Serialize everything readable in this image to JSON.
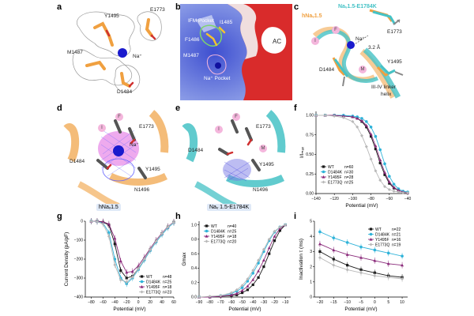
{
  "panels": {
    "a": {
      "letter": "a",
      "labels": [
        "Y1495",
        "E1773",
        "M1487",
        "D1484",
        "Na⁺"
      ]
    },
    "b": {
      "letter": "b",
      "labels": [
        "IFM Pocket",
        "F1486",
        "I1485",
        "M1487",
        "Na⁺ Pocket",
        "AC"
      ]
    },
    "c": {
      "letter": "c",
      "title1": "Naᵥ1.5-E1784K",
      "title2": "hNaᵥ1.5",
      "labels": [
        "I",
        "F",
        "Na⁺",
        "E1773",
        "3.2 Å",
        "D1484",
        "M",
        "Y1495",
        "III-IV linker",
        "helix"
      ]
    },
    "d": {
      "letter": "d",
      "labels": [
        "F",
        "I",
        "E1773",
        "Na⁺",
        "D1484",
        "Y1495",
        "N1496"
      ],
      "caption": "hNaᵥ1.5"
    },
    "e": {
      "letter": "e",
      "labels": [
        "F",
        "I",
        "E1773",
        "M",
        "D1484",
        "Y1495",
        "N1496"
      ],
      "caption": "Naᵥ 1.5-E1784K"
    },
    "f": {
      "letter": "f"
    },
    "g": {
      "letter": "g"
    },
    "h": {
      "letter": "h"
    },
    "i": {
      "letter": "i"
    }
  },
  "colors": {
    "WT": "#1a1a1a",
    "D1484K": "#2fb3d9",
    "Y1495F": "#8a2a7a",
    "E1773Q": "#b8b8b8",
    "orange": "#f0a040",
    "teal": "#45c2c6"
  },
  "chart_data": [
    {
      "panel": "f",
      "type": "line",
      "ylabel": "I/Iₘₐₓ",
      "xlabel": "Potential (mV)",
      "xlim": [
        -140,
        -40
      ],
      "ylim": [
        0,
        1.05
      ],
      "xticks": [
        -140,
        -120,
        -100,
        -80,
        -60,
        -40
      ],
      "yticks": [
        0.0,
        0.25,
        0.5,
        0.75,
        1.0
      ],
      "xtick_labels": [
        "−140",
        "−120",
        "−100",
        "−80",
        "−60",
        "−40"
      ],
      "ytick_labels": [
        "0.00",
        "0.25",
        "0.50",
        "0.75",
        "1.00"
      ],
      "legend": "lower-left",
      "x": [
        -140,
        -130,
        -120,
        -110,
        -100,
        -95,
        -90,
        -85,
        -80,
        -75,
        -70,
        -65,
        -60,
        -55,
        -50,
        -45,
        -40
      ],
      "series": [
        {
          "name": "WT",
          "n": "n=60",
          "values": [
            1.0,
            1.0,
            1.0,
            0.99,
            0.98,
            0.96,
            0.92,
            0.85,
            0.73,
            0.57,
            0.39,
            0.24,
            0.13,
            0.07,
            0.04,
            0.02,
            0.01
          ]
        },
        {
          "name": "D1484K",
          "n": "n=30",
          "values": [
            1.0,
            1.0,
            1.0,
            1.0,
            0.99,
            0.98,
            0.96,
            0.92,
            0.85,
            0.73,
            0.56,
            0.38,
            0.22,
            0.12,
            0.06,
            0.03,
            0.02
          ]
        },
        {
          "name": "Y1495F",
          "n": "n=28",
          "values": [
            1.0,
            1.0,
            1.0,
            0.99,
            0.98,
            0.96,
            0.93,
            0.87,
            0.76,
            0.61,
            0.43,
            0.27,
            0.15,
            0.08,
            0.04,
            0.02,
            0.01
          ]
        },
        {
          "name": "E1773Q",
          "n": "n=25",
          "values": [
            1.0,
            1.0,
            0.99,
            0.97,
            0.92,
            0.85,
            0.74,
            0.6,
            0.44,
            0.29,
            0.17,
            0.09,
            0.05,
            0.03,
            0.02,
            0.01,
            0.01
          ]
        }
      ]
    },
    {
      "panel": "g",
      "type": "line",
      "ylabel": "Current Density (pA/pF)",
      "xlabel": "Potential (mV)",
      "xlim": [
        -90,
        60
      ],
      "ylim": [
        -400,
        0
      ],
      "xticks": [
        -80,
        -60,
        -40,
        -20,
        0,
        20,
        40,
        60
      ],
      "yticks": [
        0,
        -100,
        -200,
        -300,
        -400
      ],
      "xtick_labels": [
        "−80",
        "−60",
        "−40",
        "−20",
        "0",
        "20",
        "40",
        "60"
      ],
      "ytick_labels": [
        "0",
        "−100",
        "−200",
        "−300",
        "−400"
      ],
      "legend": "lower-right",
      "x": [
        -80,
        -70,
        -60,
        -50,
        -40,
        -30,
        -20,
        -10,
        0,
        10,
        20,
        30,
        40,
        50,
        60
      ],
      "series": [
        {
          "name": "WT",
          "n": "n=48",
          "values": [
            0,
            0,
            -5,
            -20,
            -120,
            -260,
            -300,
            -290,
            -250,
            -200,
            -150,
            -105,
            -65,
            -30,
            -5
          ]
        },
        {
          "name": "D1484K",
          "n": "n=25",
          "values": [
            0,
            -2,
            -10,
            -60,
            -200,
            -300,
            -330,
            -300,
            -255,
            -205,
            -155,
            -110,
            -70,
            -35,
            -8
          ]
        },
        {
          "name": "Y1495F",
          "n": "n=18",
          "values": [
            0,
            0,
            -3,
            -15,
            -90,
            -210,
            -270,
            -265,
            -235,
            -190,
            -145,
            -100,
            -62,
            -28,
            -4
          ]
        },
        {
          "name": "E1773Q",
          "n": "n=23",
          "values": [
            0,
            -2,
            -15,
            -80,
            -230,
            -310,
            -320,
            -295,
            -250,
            -200,
            -150,
            -105,
            -65,
            -30,
            -6
          ]
        }
      ]
    },
    {
      "panel": "h",
      "type": "line",
      "ylabel": "Gmax",
      "xlabel": "Potential (mV)",
      "xlim": [
        -90,
        -5
      ],
      "ylim": [
        0,
        1.05
      ],
      "xticks": [
        -90,
        -80,
        -70,
        -60,
        -50,
        -40,
        -30,
        -20,
        -10
      ],
      "yticks": [
        0.0,
        0.2,
        0.4,
        0.6,
        0.8,
        1.0
      ],
      "xtick_labels": [
        "−90",
        "−80",
        "−70",
        "−60",
        "−50",
        "−40",
        "−30",
        "−20",
        "−10"
      ],
      "ytick_labels": [
        "0.0",
        "0.2",
        "0.4",
        "0.6",
        "0.8",
        "1.0"
      ],
      "legend": "top-left",
      "x": [
        -90,
        -80,
        -70,
        -60,
        -55,
        -50,
        -45,
        -40,
        -35,
        -30,
        -25,
        -20,
        -15,
        -10
      ],
      "series": [
        {
          "name": "WT",
          "n": "n=40",
          "values": [
            0,
            0,
            0.01,
            0.02,
            0.03,
            0.06,
            0.1,
            0.17,
            0.27,
            0.42,
            0.6,
            0.78,
            0.92,
            1.0
          ]
        },
        {
          "name": "D1484K",
          "n": "n=25",
          "values": [
            0,
            0,
            0.02,
            0.05,
            0.08,
            0.13,
            0.22,
            0.33,
            0.47,
            0.63,
            0.78,
            0.9,
            0.97,
            1.0
          ]
        },
        {
          "name": "Y1495F",
          "n": "n=18",
          "values": [
            0,
            0,
            0.01,
            0.03,
            0.05,
            0.09,
            0.15,
            0.24,
            0.36,
            0.51,
            0.68,
            0.84,
            0.95,
            1.0
          ]
        },
        {
          "name": "E1773Q",
          "n": "n=20",
          "values": [
            0,
            0.01,
            0.02,
            0.06,
            0.1,
            0.16,
            0.25,
            0.37,
            0.51,
            0.66,
            0.8,
            0.91,
            0.97,
            1.0
          ]
        }
      ]
    },
    {
      "panel": "i",
      "type": "line",
      "ylabel": "Inactivation τ (ms)",
      "xlabel": "Potential (mV)",
      "xlim": [
        -22,
        12
      ],
      "ylim": [
        0,
        5
      ],
      "xticks": [
        -20,
        -15,
        -10,
        -5,
        0,
        5,
        10
      ],
      "yticks": [
        0,
        1,
        2,
        3,
        4,
        5
      ],
      "xtick_labels": [
        "−20",
        "−15",
        "−10",
        "−5",
        "0",
        "5",
        "10"
      ],
      "ytick_labels": [
        "0",
        "1",
        "2",
        "3",
        "4",
        "5"
      ],
      "legend": "top-right",
      "x": [
        -20,
        -15,
        -10,
        -5,
        0,
        5,
        10
      ],
      "series": [
        {
          "name": "WT",
          "n": "n=22",
          "values": [
            3.0,
            2.5,
            2.1,
            1.8,
            1.6,
            1.4,
            1.3
          ]
        },
        {
          "name": "D1484K",
          "n": "n=21",
          "values": [
            4.3,
            3.9,
            3.6,
            3.3,
            3.1,
            2.9,
            2.7
          ]
        },
        {
          "name": "Y1495F",
          "n": "n=16",
          "values": [
            3.5,
            3.1,
            2.8,
            2.6,
            2.4,
            2.2,
            2.1
          ]
        },
        {
          "name": "E1773Q",
          "n": "n=19",
          "values": [
            2.6,
            2.1,
            1.8,
            1.6,
            1.4,
            1.3,
            1.2
          ]
        }
      ]
    }
  ]
}
